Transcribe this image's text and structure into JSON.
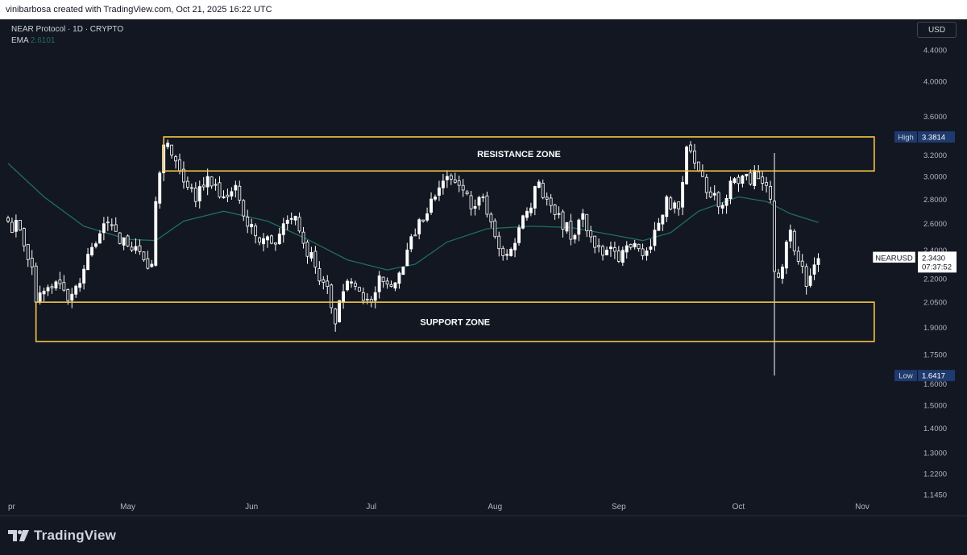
{
  "header": {
    "attribution": "vinibarbosa created with TradingView.com, Oct 21, 2025 16:22 UTC"
  },
  "legend": {
    "title": "NEAR Protocol · 1D · CRYPTO",
    "ema_label": "EMA",
    "ema_value": "2.6101"
  },
  "currency_button": "USD",
  "footer": {
    "brand": "TradingView"
  },
  "colors": {
    "background": "#131722",
    "zone": "#f5c542",
    "candle": "#ffffff",
    "ema": "#1f6f5c",
    "high_low_label_bg": "#1e3a6e",
    "axis_text": "#b2b5be"
  },
  "chart_data": {
    "type": "candlestick",
    "symbol": "NEARUSD",
    "timeframe": "1D",
    "y_scale": "log",
    "ylim": [
      1.13,
      4.6
    ],
    "y_tick_labels": [
      "4.4000",
      "4.0000",
      "3.6000",
      "3.2000",
      "3.0000",
      "2.8000",
      "2.6000",
      "2.4000",
      "2.2000",
      "2.0500",
      "1.9000",
      "1.7500",
      "1.6000",
      "1.5000",
      "1.4000",
      "1.3000",
      "1.2200",
      "1.1450"
    ],
    "x_tick_labels": [
      {
        "label": "pr",
        "date": "2025-04-01"
      },
      {
        "label": "May",
        "date": "2025-05-01"
      },
      {
        "label": "Jun",
        "date": "2025-06-01"
      },
      {
        "label": "Jul",
        "date": "2025-07-01"
      },
      {
        "label": "Aug",
        "date": "2025-08-01"
      },
      {
        "label": "Sep",
        "date": "2025-09-01"
      },
      {
        "label": "Oct",
        "date": "2025-10-01"
      },
      {
        "label": "Nov",
        "date": "2025-11-01"
      }
    ],
    "range_start": "2025-04-01",
    "range_end": "2025-11-10",
    "closes": [
      {
        "date": "2025-04-01",
        "close": 2.62
      },
      {
        "date": "2025-04-04",
        "close": 2.55
      },
      {
        "date": "2025-04-07",
        "close": 2.28
      },
      {
        "date": "2025-04-08",
        "close": 2.05
      },
      {
        "date": "2025-04-10",
        "close": 2.12
      },
      {
        "date": "2025-04-13",
        "close": 2.18
      },
      {
        "date": "2025-04-16",
        "close": 2.06
      },
      {
        "date": "2025-04-19",
        "close": 2.17
      },
      {
        "date": "2025-04-22",
        "close": 2.42
      },
      {
        "date": "2025-04-25",
        "close": 2.6
      },
      {
        "date": "2025-04-28",
        "close": 2.54
      },
      {
        "date": "2025-05-02",
        "close": 2.4
      },
      {
        "date": "2025-05-05",
        "close": 2.33
      },
      {
        "date": "2025-05-07",
        "close": 2.3
      },
      {
        "date": "2025-05-08",
        "close": 2.78
      },
      {
        "date": "2025-05-10",
        "close": 3.3
      },
      {
        "date": "2025-05-12",
        "close": 3.2
      },
      {
        "date": "2025-05-15",
        "close": 2.95
      },
      {
        "date": "2025-05-18",
        "close": 2.78
      },
      {
        "date": "2025-05-21",
        "close": 3.0
      },
      {
        "date": "2025-05-24",
        "close": 2.82
      },
      {
        "date": "2025-05-28",
        "close": 2.92
      },
      {
        "date": "2025-05-31",
        "close": 2.58
      },
      {
        "date": "2025-06-03",
        "close": 2.46
      },
      {
        "date": "2025-06-06",
        "close": 2.45
      },
      {
        "date": "2025-06-09",
        "close": 2.6
      },
      {
        "date": "2025-06-12",
        "close": 2.66
      },
      {
        "date": "2025-06-14",
        "close": 2.45
      },
      {
        "date": "2025-06-17",
        "close": 2.28
      },
      {
        "date": "2025-06-20",
        "close": 2.15
      },
      {
        "date": "2025-06-22",
        "close": 1.92
      },
      {
        "date": "2025-06-23",
        "close": 2.06
      },
      {
        "date": "2025-06-26",
        "close": 2.18
      },
      {
        "date": "2025-06-28",
        "close": 2.12
      },
      {
        "date": "2025-07-01",
        "close": 2.05
      },
      {
        "date": "2025-07-03",
        "close": 2.22
      },
      {
        "date": "2025-07-06",
        "close": 2.15
      },
      {
        "date": "2025-07-09",
        "close": 2.28
      },
      {
        "date": "2025-07-11",
        "close": 2.5
      },
      {
        "date": "2025-07-14",
        "close": 2.62
      },
      {
        "date": "2025-07-17",
        "close": 2.82
      },
      {
        "date": "2025-07-20",
        "close": 3.0
      },
      {
        "date": "2025-07-23",
        "close": 2.92
      },
      {
        "date": "2025-07-26",
        "close": 2.72
      },
      {
        "date": "2025-07-29",
        "close": 2.82
      },
      {
        "date": "2025-08-01",
        "close": 2.5
      },
      {
        "date": "2025-08-03",
        "close": 2.36
      },
      {
        "date": "2025-08-06",
        "close": 2.45
      },
      {
        "date": "2025-08-09",
        "close": 2.7
      },
      {
        "date": "2025-08-12",
        "close": 2.95
      },
      {
        "date": "2025-08-14",
        "close": 2.8
      },
      {
        "date": "2025-08-17",
        "close": 2.68
      },
      {
        "date": "2025-08-20",
        "close": 2.48
      },
      {
        "date": "2025-08-23",
        "close": 2.68
      },
      {
        "date": "2025-08-26",
        "close": 2.42
      },
      {
        "date": "2025-08-29",
        "close": 2.4
      },
      {
        "date": "2025-09-01",
        "close": 2.32
      },
      {
        "date": "2025-09-04",
        "close": 2.42
      },
      {
        "date": "2025-09-07",
        "close": 2.36
      },
      {
        "date": "2025-09-10",
        "close": 2.55
      },
      {
        "date": "2025-09-13",
        "close": 2.82
      },
      {
        "date": "2025-09-16",
        "close": 2.72
      },
      {
        "date": "2025-09-18",
        "close": 3.28
      },
      {
        "date": "2025-09-21",
        "close": 3.05
      },
      {
        "date": "2025-09-24",
        "close": 2.82
      },
      {
        "date": "2025-09-27",
        "close": 2.75
      },
      {
        "date": "2025-09-30",
        "close": 2.98
      },
      {
        "date": "2025-10-03",
        "close": 3.02
      },
      {
        "date": "2025-10-06",
        "close": 2.98
      },
      {
        "date": "2025-10-09",
        "close": 2.8
      },
      {
        "date": "2025-10-10",
        "close": 2.25
      },
      {
        "date": "2025-10-12",
        "close": 2.28
      },
      {
        "date": "2025-10-14",
        "close": 2.55
      },
      {
        "date": "2025-10-16",
        "close": 2.32
      },
      {
        "date": "2025-10-18",
        "close": 2.15
      },
      {
        "date": "2025-10-21",
        "close": 2.34
      }
    ],
    "ema_series": {
      "name": "EMA",
      "last_value": 2.6101,
      "points": [
        {
          "date": "2025-04-01",
          "value": 3.12
        },
        {
          "date": "2025-04-10",
          "value": 2.82
        },
        {
          "date": "2025-04-20",
          "value": 2.58
        },
        {
          "date": "2025-05-01",
          "value": 2.48
        },
        {
          "date": "2025-05-08",
          "value": 2.47
        },
        {
          "date": "2025-05-15",
          "value": 2.62
        },
        {
          "date": "2025-05-25",
          "value": 2.7
        },
        {
          "date": "2025-06-05",
          "value": 2.62
        },
        {
          "date": "2025-06-15",
          "value": 2.48
        },
        {
          "date": "2025-06-25",
          "value": 2.33
        },
        {
          "date": "2025-07-05",
          "value": 2.26
        },
        {
          "date": "2025-07-12",
          "value": 2.3
        },
        {
          "date": "2025-07-20",
          "value": 2.46
        },
        {
          "date": "2025-07-30",
          "value": 2.56
        },
        {
          "date": "2025-08-10",
          "value": 2.58
        },
        {
          "date": "2025-08-20",
          "value": 2.57
        },
        {
          "date": "2025-08-31",
          "value": 2.51
        },
        {
          "date": "2025-09-07",
          "value": 2.47
        },
        {
          "date": "2025-09-14",
          "value": 2.53
        },
        {
          "date": "2025-09-21",
          "value": 2.7
        },
        {
          "date": "2025-10-01",
          "value": 2.82
        },
        {
          "date": "2025-10-08",
          "value": 2.78
        },
        {
          "date": "2025-10-14",
          "value": 2.68
        },
        {
          "date": "2025-10-21",
          "value": 2.61
        }
      ]
    },
    "zones": [
      {
        "label": "RESISTANCE ZONE",
        "from": "2025-05-10",
        "to": "2025-11-04",
        "low": 3.05,
        "high": 3.3814
      },
      {
        "label": "SUPPORT ZONE",
        "from": "2025-04-08",
        "to": "2025-11-04",
        "low": 1.82,
        "high": 2.05
      }
    ],
    "high": {
      "label": "High",
      "value": "3.3814"
    },
    "low": {
      "label": "Low",
      "value": "1.6417"
    },
    "last_price": {
      "symbol": "NEARUSD",
      "value": "2.3430",
      "countdown": "07:37:52"
    },
    "price_high_marker": {
      "date": "2025-05-10",
      "value": 3.3814
    },
    "wick_low_marker": {
      "date": "2025-10-10",
      "value": 1.6417,
      "wick_high": 3.22
    }
  }
}
